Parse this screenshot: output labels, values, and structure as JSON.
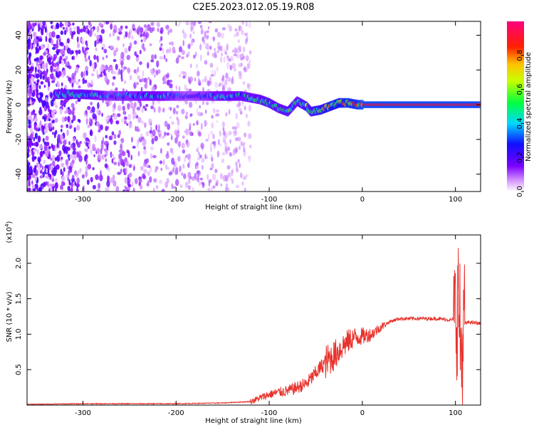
{
  "title": "C2E5.2023.012.05.19.R08",
  "colors": {
    "axis": "#000000",
    "snr_line": "#e8322c",
    "background": "#ffffff"
  },
  "chart_data": [
    {
      "type": "heatmap",
      "xlabel": "Height of straight line (km)",
      "ylabel": "Frequency (Hz)",
      "xlim": [
        -360,
        127
      ],
      "ylim": [
        -50,
        48
      ],
      "x_ticks": [
        -300,
        -200,
        -100,
        0,
        100
      ],
      "y_ticks": [
        -40,
        -20,
        0,
        20,
        40
      ],
      "colorbar": {
        "label": "Normalized spectral amplitude",
        "range": [
          0,
          1
        ],
        "ticks": [
          "0.0",
          "0.2",
          "0.4",
          "0.6",
          "0.8"
        ],
        "tick_values": [
          0.0,
          0.2,
          0.4,
          0.6,
          0.8
        ],
        "colormap": "rainbow: white, violet, blue, cyan, green, yellow, orange, red, magenta"
      },
      "ridge": [
        {
          "x": -330,
          "y": 6,
          "amp": 0.45
        },
        {
          "x": -300,
          "y": 6,
          "amp": 0.5
        },
        {
          "x": -270,
          "y": 5,
          "amp": 0.35
        },
        {
          "x": -240,
          "y": 5,
          "amp": 0.4
        },
        {
          "x": -220,
          "y": 5,
          "amp": 0.45
        },
        {
          "x": -190,
          "y": 5,
          "amp": 0.3
        },
        {
          "x": -170,
          "y": 5,
          "amp": 0.35
        },
        {
          "x": -150,
          "y": 5,
          "amp": 0.45
        },
        {
          "x": -130,
          "y": 5,
          "amp": 0.45
        },
        {
          "x": -110,
          "y": 3,
          "amp": 0.5
        },
        {
          "x": -100,
          "y": 1,
          "amp": 0.55
        },
        {
          "x": -90,
          "y": -2,
          "amp": 0.5
        },
        {
          "x": -80,
          "y": -4,
          "amp": 0.55
        },
        {
          "x": -70,
          "y": 2,
          "amp": 0.5
        },
        {
          "x": -60,
          "y": -1,
          "amp": 0.6
        },
        {
          "x": -55,
          "y": -4,
          "amp": 0.6
        },
        {
          "x": -45,
          "y": -3,
          "amp": 0.7
        },
        {
          "x": -35,
          "y": -1,
          "amp": 0.75
        },
        {
          "x": -25,
          "y": 1,
          "amp": 0.8
        },
        {
          "x": -15,
          "y": 1,
          "amp": 0.85
        },
        {
          "x": -5,
          "y": 0,
          "amp": 0.85
        },
        {
          "x": 0,
          "y": 0,
          "amp": 0.9
        },
        {
          "x": 20,
          "y": 0,
          "amp": 0.9
        },
        {
          "x": 60,
          "y": 0,
          "amp": 0.9
        },
        {
          "x": 100,
          "y": 0,
          "amp": 0.9
        },
        {
          "x": 127,
          "y": 0,
          "amp": 0.9
        }
      ]
    },
    {
      "type": "line",
      "xlabel": "Height of straight line (km)",
      "ylabel": "SNR (10 * v/v)",
      "y_multiplier": "(x10",
      "y_multiplier_exp": "4",
      "y_multiplier_close": ")",
      "xlim": [
        -360,
        127
      ],
      "ylim": [
        0,
        2.4
      ],
      "x_ticks": [
        -300,
        -200,
        -100,
        0,
        100
      ],
      "y_ticks": [
        "0.5",
        "1.0",
        "1.5",
        "2.0"
      ],
      "y_tick_values": [
        0.5,
        1.0,
        1.5,
        2.0
      ],
      "series": [
        {
          "x": [
            -360,
            -300,
            -250,
            -200,
            -150,
            -120,
            -110,
            -100,
            -90,
            -80,
            -70,
            -60,
            -50,
            -40,
            -30,
            -20,
            -10,
            0,
            10,
            20,
            30,
            40,
            60,
            80,
            95,
            100,
            103,
            105,
            107,
            110,
            115,
            127
          ],
          "y": [
            0.01,
            0.02,
            0.02,
            0.02,
            0.03,
            0.05,
            0.1,
            0.15,
            0.18,
            0.2,
            0.25,
            0.3,
            0.45,
            0.6,
            0.7,
            0.85,
            0.95,
            0.97,
            1.0,
            1.1,
            1.18,
            1.22,
            1.22,
            1.22,
            1.2,
            1.22,
            1.5,
            1.0,
            0.6,
            1.15,
            1.17,
            1.15
          ]
        }
      ]
    }
  ]
}
